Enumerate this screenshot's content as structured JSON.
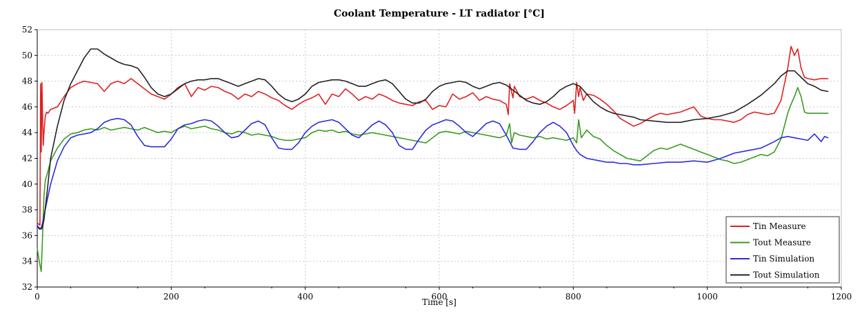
{
  "chart_data": {
    "type": "line",
    "title": "Coolant Temperature - LT radiator [°C]",
    "xlabel": "Time [s]",
    "ylabel": "",
    "xlim": [
      0,
      1200
    ],
    "ylim": [
      32,
      52
    ],
    "xticks": [
      0,
      200,
      400,
      600,
      800,
      1000,
      1200
    ],
    "yticks": [
      32,
      34,
      36,
      38,
      40,
      42,
      44,
      46,
      48,
      50,
      52
    ],
    "grid": true,
    "legend_position": "bottom-right",
    "series": [
      {
        "name": "Tin Measure",
        "color": "#e02020",
        "x": [
          0,
          4,
          5,
          6,
          7,
          9,
          10,
          12,
          14,
          16,
          20,
          30,
          40,
          50,
          60,
          70,
          80,
          90,
          100,
          110,
          120,
          130,
          140,
          150,
          160,
          170,
          180,
          190,
          200,
          210,
          220,
          230,
          240,
          250,
          260,
          270,
          280,
          290,
          300,
          310,
          320,
          330,
          340,
          350,
          360,
          370,
          380,
          390,
          400,
          410,
          420,
          430,
          440,
          450,
          460,
          470,
          480,
          490,
          500,
          510,
          520,
          530,
          540,
          550,
          560,
          570,
          580,
          590,
          600,
          610,
          620,
          630,
          640,
          650,
          660,
          670,
          680,
          690,
          700,
          703,
          705,
          710,
          712,
          720,
          730,
          740,
          750,
          760,
          770,
          780,
          790,
          800,
          802,
          805,
          808,
          810,
          815,
          820,
          830,
          840,
          850,
          860,
          870,
          880,
          890,
          900,
          910,
          920,
          930,
          940,
          950,
          960,
          970,
          980,
          990,
          1000,
          1010,
          1020,
          1030,
          1040,
          1050,
          1060,
          1070,
          1080,
          1090,
          1100,
          1110,
          1120,
          1125,
          1130,
          1135,
          1140,
          1145,
          1150,
          1160,
          1170,
          1180
        ],
        "values": [
          37.0,
          36.8,
          47.8,
          42.5,
          47.9,
          43.0,
          44.0,
          45.3,
          45.6,
          45.5,
          45.8,
          46.0,
          46.8,
          47.5,
          47.8,
          48.0,
          47.9,
          47.8,
          47.2,
          47.8,
          48.0,
          47.8,
          48.2,
          47.8,
          47.4,
          47.0,
          46.8,
          46.6,
          47.0,
          47.5,
          47.8,
          46.8,
          47.5,
          47.3,
          47.6,
          47.5,
          47.2,
          47.0,
          46.6,
          47.0,
          46.8,
          47.2,
          47.0,
          46.7,
          46.5,
          46.1,
          45.8,
          46.2,
          46.5,
          46.7,
          47.0,
          46.2,
          47.0,
          46.8,
          47.4,
          47.0,
          46.5,
          46.8,
          46.6,
          47.0,
          46.8,
          46.5,
          46.3,
          46.2,
          46.1,
          46.4,
          46.5,
          45.8,
          46.1,
          46.0,
          47.0,
          46.6,
          46.8,
          47.1,
          46.5,
          46.8,
          46.6,
          46.5,
          46.2,
          45.4,
          47.8,
          46.7,
          47.6,
          46.8,
          46.6,
          46.8,
          46.5,
          46.3,
          46.0,
          45.8,
          46.1,
          46.5,
          45.5,
          47.9,
          46.8,
          47.5,
          46.5,
          47.0,
          46.9,
          46.6,
          46.2,
          45.7,
          45.1,
          44.8,
          44.5,
          44.7,
          45.0,
          45.3,
          45.5,
          45.4,
          45.5,
          45.6,
          45.8,
          46.0,
          45.3,
          45.1,
          45.0,
          45.0,
          44.9,
          44.8,
          45.0,
          45.4,
          45.6,
          45.5,
          45.4,
          45.5,
          46.5,
          49.0,
          50.7,
          50.0,
          50.5,
          49.0,
          48.3,
          48.2,
          48.1,
          48.2,
          48.2
        ]
      },
      {
        "name": "Tout Measure",
        "color": "#3a9a1e",
        "x": [
          0,
          3,
          6,
          8,
          10,
          12,
          15,
          20,
          30,
          40,
          50,
          60,
          70,
          80,
          90,
          100,
          110,
          120,
          130,
          140,
          150,
          160,
          170,
          180,
          190,
          200,
          210,
          220,
          230,
          240,
          250,
          260,
          270,
          280,
          290,
          300,
          310,
          320,
          330,
          340,
          350,
          360,
          370,
          380,
          390,
          400,
          410,
          420,
          430,
          440,
          450,
          460,
          470,
          480,
          490,
          500,
          510,
          520,
          530,
          540,
          550,
          560,
          570,
          580,
          590,
          600,
          610,
          620,
          630,
          640,
          650,
          660,
          670,
          680,
          690,
          700,
          705,
          708,
          712,
          720,
          730,
          740,
          750,
          760,
          770,
          780,
          790,
          800,
          805,
          808,
          812,
          820,
          830,
          840,
          850,
          860,
          870,
          880,
          890,
          900,
          910,
          920,
          930,
          940,
          950,
          960,
          970,
          980,
          990,
          1000,
          1010,
          1020,
          1030,
          1040,
          1050,
          1060,
          1070,
          1080,
          1090,
          1100,
          1110,
          1120,
          1125,
          1130,
          1135,
          1140,
          1145,
          1150,
          1160,
          1170,
          1180
        ],
        "values": [
          35.0,
          34.0,
          33.2,
          36.0,
          39.0,
          40.3,
          40.8,
          41.8,
          42.8,
          43.5,
          43.9,
          44.0,
          44.2,
          44.3,
          44.2,
          44.4,
          44.2,
          44.3,
          44.4,
          44.3,
          44.2,
          44.4,
          44.2,
          44.0,
          44.1,
          44.0,
          44.3,
          44.5,
          44.3,
          44.4,
          44.5,
          44.3,
          44.2,
          44.0,
          43.9,
          44.1,
          44.0,
          43.8,
          43.9,
          43.8,
          43.7,
          43.5,
          43.4,
          43.4,
          43.5,
          43.6,
          44.0,
          44.2,
          44.1,
          44.2,
          44.0,
          44.1,
          43.9,
          43.8,
          43.9,
          44.0,
          43.9,
          43.8,
          43.7,
          43.6,
          43.5,
          43.4,
          43.3,
          43.2,
          43.6,
          44.0,
          44.1,
          44.0,
          43.9,
          44.1,
          44.0,
          43.9,
          43.8,
          43.7,
          43.6,
          43.8,
          44.7,
          43.2,
          44.0,
          43.8,
          43.7,
          43.6,
          43.7,
          43.5,
          43.6,
          43.5,
          43.4,
          43.6,
          43.2,
          45.0,
          43.6,
          44.2,
          43.7,
          43.5,
          43.0,
          42.6,
          42.3,
          42.0,
          41.9,
          41.8,
          42.2,
          42.6,
          42.8,
          42.7,
          42.9,
          43.1,
          42.9,
          42.7,
          42.5,
          42.3,
          42.1,
          41.9,
          41.8,
          41.6,
          41.7,
          41.9,
          42.1,
          42.3,
          42.2,
          42.5,
          43.5,
          45.5,
          46.2,
          46.8,
          47.5,
          46.8,
          45.6,
          45.5,
          45.5,
          45.5,
          45.5
        ]
      },
      {
        "name": "Tin Simulation",
        "color": "#2a2ae0",
        "x": [
          0,
          3,
          6,
          8,
          10,
          15,
          20,
          30,
          40,
          50,
          60,
          70,
          80,
          90,
          100,
          110,
          120,
          130,
          140,
          150,
          160,
          170,
          180,
          190,
          200,
          210,
          220,
          230,
          240,
          250,
          260,
          270,
          280,
          290,
          300,
          310,
          320,
          330,
          340,
          350,
          360,
          370,
          380,
          390,
          400,
          410,
          420,
          430,
          440,
          450,
          460,
          470,
          480,
          490,
          500,
          510,
          520,
          530,
          540,
          550,
          560,
          570,
          580,
          590,
          600,
          610,
          620,
          630,
          640,
          650,
          660,
          670,
          680,
          690,
          700,
          710,
          720,
          730,
          740,
          750,
          760,
          770,
          780,
          790,
          800,
          805,
          810,
          820,
          830,
          840,
          850,
          860,
          870,
          880,
          890,
          900,
          920,
          940,
          960,
          980,
          1000,
          1020,
          1040,
          1060,
          1080,
          1100,
          1110,
          1120,
          1130,
          1140,
          1150,
          1160,
          1170,
          1175,
          1180
        ],
        "values": [
          36.8,
          36.5,
          36.6,
          37.0,
          37.5,
          38.8,
          40.0,
          41.8,
          42.9,
          43.6,
          43.8,
          43.9,
          44.0,
          44.3,
          44.8,
          45.0,
          45.1,
          45.0,
          44.6,
          43.7,
          43.0,
          42.9,
          42.9,
          42.9,
          43.5,
          44.3,
          44.6,
          44.7,
          44.9,
          45.0,
          44.9,
          44.5,
          44.0,
          43.6,
          43.7,
          44.2,
          44.7,
          44.9,
          44.6,
          43.6,
          42.8,
          42.7,
          42.7,
          43.2,
          44.0,
          44.5,
          44.8,
          44.9,
          45.0,
          44.8,
          44.3,
          43.8,
          43.6,
          44.1,
          44.6,
          44.9,
          44.6,
          44.0,
          43.0,
          42.7,
          42.7,
          43.5,
          44.2,
          44.6,
          44.8,
          45.0,
          44.9,
          44.5,
          44.0,
          43.7,
          44.2,
          44.7,
          44.9,
          44.7,
          43.8,
          42.8,
          42.7,
          42.7,
          43.3,
          44.0,
          44.5,
          44.8,
          44.5,
          44.0,
          43.0,
          42.6,
          42.3,
          42.0,
          41.9,
          41.8,
          41.7,
          41.7,
          41.6,
          41.6,
          41.5,
          41.5,
          41.6,
          41.7,
          41.7,
          41.8,
          41.7,
          42.0,
          42.4,
          42.6,
          42.8,
          43.3,
          43.6,
          43.7,
          43.6,
          43.5,
          43.4,
          43.9,
          43.3,
          43.7,
          43.6
        ]
      },
      {
        "name": "Tout Simulation",
        "color": "#222222",
        "x": [
          0,
          3,
          6,
          8,
          10,
          15,
          20,
          30,
          40,
          50,
          60,
          70,
          80,
          90,
          100,
          110,
          120,
          130,
          140,
          150,
          160,
          170,
          180,
          190,
          200,
          210,
          220,
          230,
          240,
          250,
          260,
          270,
          280,
          290,
          300,
          310,
          320,
          330,
          340,
          350,
          360,
          370,
          380,
          390,
          400,
          410,
          420,
          430,
          440,
          450,
          460,
          470,
          480,
          490,
          500,
          510,
          520,
          530,
          540,
          550,
          560,
          570,
          580,
          590,
          600,
          610,
          620,
          630,
          640,
          650,
          660,
          670,
          680,
          690,
          700,
          710,
          720,
          730,
          740,
          750,
          760,
          770,
          780,
          790,
          800,
          810,
          820,
          830,
          840,
          850,
          860,
          870,
          880,
          890,
          900,
          920,
          940,
          960,
          980,
          1000,
          1020,
          1040,
          1060,
          1080,
          1100,
          1110,
          1120,
          1130,
          1140,
          1150,
          1160,
          1170,
          1180
        ],
        "values": [
          36.7,
          36.6,
          36.5,
          36.7,
          37.2,
          39.5,
          42.0,
          44.5,
          46.5,
          47.8,
          48.8,
          49.8,
          50.5,
          50.5,
          50.1,
          49.8,
          49.5,
          49.3,
          49.2,
          49.0,
          48.3,
          47.5,
          47.0,
          46.8,
          47.0,
          47.4,
          47.8,
          48.0,
          48.1,
          48.1,
          48.2,
          48.2,
          48.0,
          47.8,
          47.6,
          47.8,
          48.0,
          48.2,
          48.1,
          47.6,
          47.0,
          46.6,
          46.4,
          46.6,
          47.0,
          47.6,
          47.9,
          48.0,
          48.1,
          48.1,
          48.0,
          47.8,
          47.6,
          47.6,
          47.8,
          48.0,
          48.1,
          47.8,
          47.2,
          46.6,
          46.3,
          46.3,
          46.6,
          47.2,
          47.6,
          47.8,
          47.9,
          48.0,
          47.9,
          47.6,
          47.4,
          47.6,
          47.8,
          47.9,
          47.7,
          47.3,
          46.9,
          46.5,
          46.3,
          46.2,
          46.4,
          46.8,
          47.3,
          47.6,
          47.8,
          47.6,
          47.0,
          46.4,
          46.0,
          45.7,
          45.5,
          45.4,
          45.3,
          45.2,
          45.0,
          44.9,
          44.8,
          44.8,
          45.0,
          45.1,
          45.3,
          45.6,
          46.2,
          46.9,
          47.8,
          48.4,
          48.8,
          48.8,
          48.3,
          47.8,
          47.6,
          47.3,
          47.2
        ]
      }
    ]
  }
}
